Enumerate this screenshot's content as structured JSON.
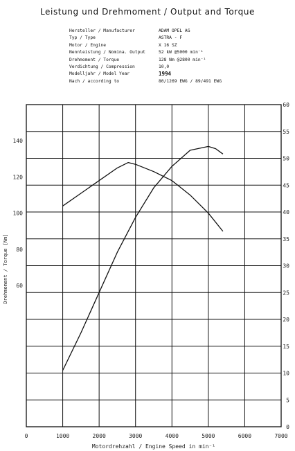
{
  "title": "Leistung und Drehmoment / Output and Torque",
  "specs": [
    {
      "label": "Hersteller / Manufacturer",
      "value": "ADAM OPEL AG"
    },
    {
      "label": "Typ / Type",
      "value": "ASTRA - F"
    },
    {
      "label": "Motor / Engine",
      "value": "X 16 SZ"
    },
    {
      "label": "Nennleistung / Nomina. Output",
      "value": "52 kW @5000 min⁻¹"
    },
    {
      "label": "Drehmoment / Torque",
      "value": "128 Nm @2800 min⁻¹"
    },
    {
      "label": "Verdichtung / Compression",
      "value": "10,0"
    },
    {
      "label": "Modelljahr / Model Year",
      "value": "1994"
    },
    {
      "label": "Nach / according to",
      "value": "80/1269 EWG / 89/491 EWG"
    }
  ],
  "chart_data": {
    "type": "line",
    "xlabel": "Motordrehzahl / Engine Speed  in min⁻¹",
    "ylabel_left": "Drehmoment / Torque [Nm]",
    "x_ticks": [
      "0",
      "1000",
      "2000",
      "3000",
      "4000",
      "5000",
      "6000",
      "7000"
    ],
    "xlim": [
      0,
      7000
    ],
    "y_left_ticks": [
      "60",
      "80",
      "100",
      "120",
      "140"
    ],
    "y_left_lim": [
      -18,
      160
    ],
    "y_right_ticks": [
      "0",
      "5",
      "10",
      "15",
      "20",
      "25",
      "30",
      "35",
      "40",
      "45",
      "50",
      "55",
      "60"
    ],
    "y_right_lim": [
      0,
      60
    ],
    "grid": true,
    "series": [
      {
        "axis": "right",
        "x": [
          1000,
          1500,
          2000,
          2500,
          3000,
          3500,
          4000,
          4500,
          5000,
          5200,
          5400
        ],
        "y": [
          10.5,
          17.5,
          25,
          32.5,
          39,
          44.5,
          48.5,
          51.5,
          52.2,
          51.8,
          50.8
        ]
      },
      {
        "axis": "left",
        "x": [
          1000,
          1500,
          2000,
          2500,
          2800,
          3000,
          3500,
          4000,
          4500,
          5000,
          5400
        ],
        "y": [
          104,
          111,
          118,
          125,
          128,
          127,
          123,
          118,
          110,
          100,
          90
        ]
      }
    ]
  }
}
